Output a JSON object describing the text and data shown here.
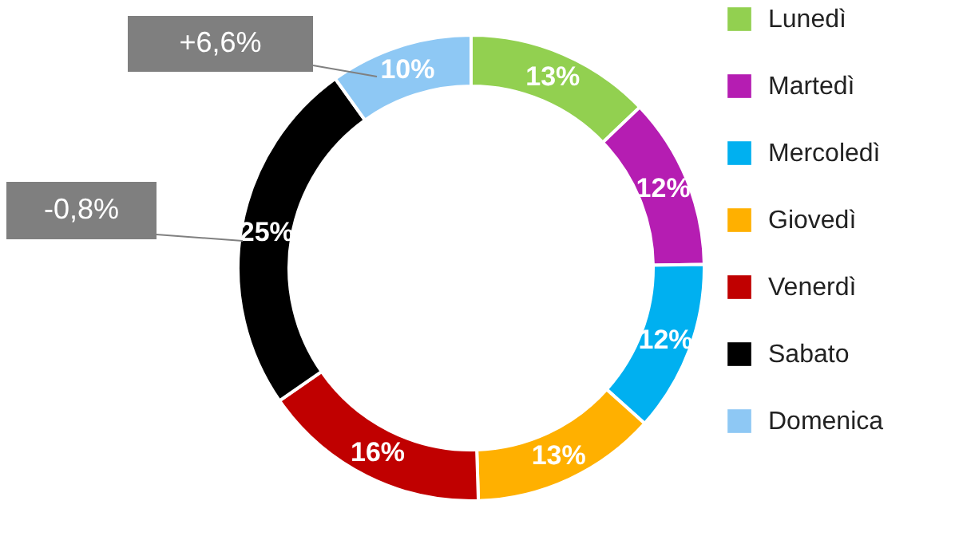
{
  "chart_data": {
    "type": "donut",
    "categories": [
      "Lunedì",
      "Martedì",
      "Mercoledì",
      "Giovedì",
      "Venerdì",
      "Sabato",
      "Domenica"
    ],
    "values": [
      13,
      12,
      12,
      13,
      16,
      25,
      10
    ],
    "colors": [
      "#92d050",
      "#b51db2",
      "#00b0f0",
      "#ffb000",
      "#c00000",
      "#000000",
      "#8ec8f4"
    ],
    "value_labels": [
      "13%",
      "12%",
      "12%",
      "13%",
      "16%",
      "25%",
      "10%"
    ],
    "legend": "right",
    "annotations": [
      "+6,6%",
      "-0,8%"
    ]
  }
}
